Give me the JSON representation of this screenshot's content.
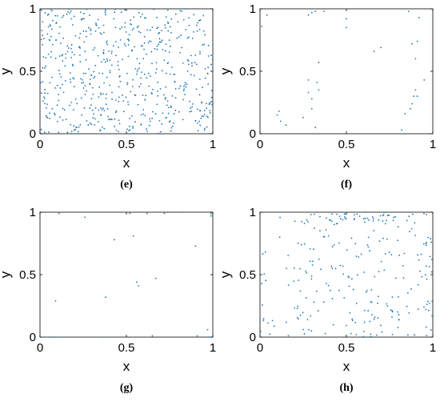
{
  "colors": {
    "points": "#1f77b4",
    "axes": "#000000",
    "background": "#ffffff"
  },
  "chart_data": [
    {
      "type": "scatter",
      "panel_label": "(e)",
      "xlabel": "x",
      "ylabel": "y",
      "xlim": [
        0,
        1
      ],
      "ylim": [
        0,
        1
      ],
      "x_ticks": [
        "0",
        "0.5",
        "1"
      ],
      "y_ticks": [
        "0",
        "0.5",
        "1"
      ],
      "grid": false,
      "x": [],
      "y": [],
      "point_count_shown": 600
    },
    {
      "type": "scatter",
      "panel_label": "(f)",
      "xlabel": "x",
      "ylabel": "y",
      "xlim": [
        0,
        1
      ],
      "ylim": [
        0,
        1
      ],
      "x_ticks": [
        "0",
        "0.5",
        "1"
      ],
      "y_ticks": [
        "0",
        "0.5",
        "1"
      ],
      "grid": false,
      "x": [
        0.01,
        0.04,
        0.1,
        0.11,
        0.12,
        0.15,
        0.25,
        0.28,
        0.28,
        0.28,
        0.3,
        0.3,
        0.3,
        0.32,
        0.32,
        0.33,
        0.34,
        0.34,
        0.37,
        0.5,
        0.5,
        0.66,
        0.7,
        0.82,
        0.84,
        0.86,
        0.87,
        0.88,
        0.88,
        0.89,
        0.9,
        0.9,
        0.91,
        0.91,
        0.92,
        0.95,
        0.98
      ],
      "y": [
        0.86,
        0.95,
        0.15,
        0.18,
        0.1,
        0.07,
        0.13,
        0.33,
        0.43,
        0.95,
        0.2,
        0.28,
        0.97,
        0.05,
        0.98,
        0.41,
        0.35,
        0.57,
        0.98,
        0.85,
        0.92,
        0.66,
        0.69,
        0.03,
        0.16,
        0.98,
        0.2,
        0.24,
        0.72,
        0.3,
        0.6,
        0.35,
        0.3,
        0.74,
        0.93,
        0.43,
        0.0
      ]
    },
    {
      "type": "scatter",
      "panel_label": "(g)",
      "xlabel": "x",
      "ylabel": "y",
      "xlim": [
        0,
        1
      ],
      "ylim": [
        0,
        1
      ],
      "x_ticks": [
        "0",
        "0.5",
        "1"
      ],
      "y_ticks": [
        "0",
        "0.5",
        "1"
      ],
      "grid": false,
      "x": [
        0.01,
        0.07,
        0.08,
        0.09,
        0.11,
        0.12,
        0.26,
        0.36,
        0.38,
        0.43,
        0.52,
        0.54,
        0.56,
        0.57,
        0.62,
        0.65,
        0.67,
        0.72,
        0.74,
        0.82,
        0.9,
        0.91,
        0.97,
        0.98,
        0.99,
        0.99
      ],
      "y": [
        0.0,
        0.0,
        0.0,
        0.29,
        0.99,
        0.0,
        0.96,
        0.0,
        0.32,
        0.78,
        0.99,
        0.81,
        0.44,
        0.41,
        0.99,
        0.01,
        0.47,
        0.99,
        1.0,
        1.0,
        0.73,
        0.01,
        0.06,
        0.0,
        0.99,
        0.97
      ]
    },
    {
      "type": "scatter",
      "panel_label": "(h)",
      "xlabel": "x",
      "ylabel": "y",
      "xlim": [
        0,
        1
      ],
      "ylim": [
        0,
        1
      ],
      "x_ticks": [
        "0",
        "0.5",
        "1"
      ],
      "y_ticks": [
        "0",
        "0.5",
        "1"
      ],
      "grid": false,
      "x": [],
      "y": [],
      "point_count_shown": 260
    }
  ]
}
